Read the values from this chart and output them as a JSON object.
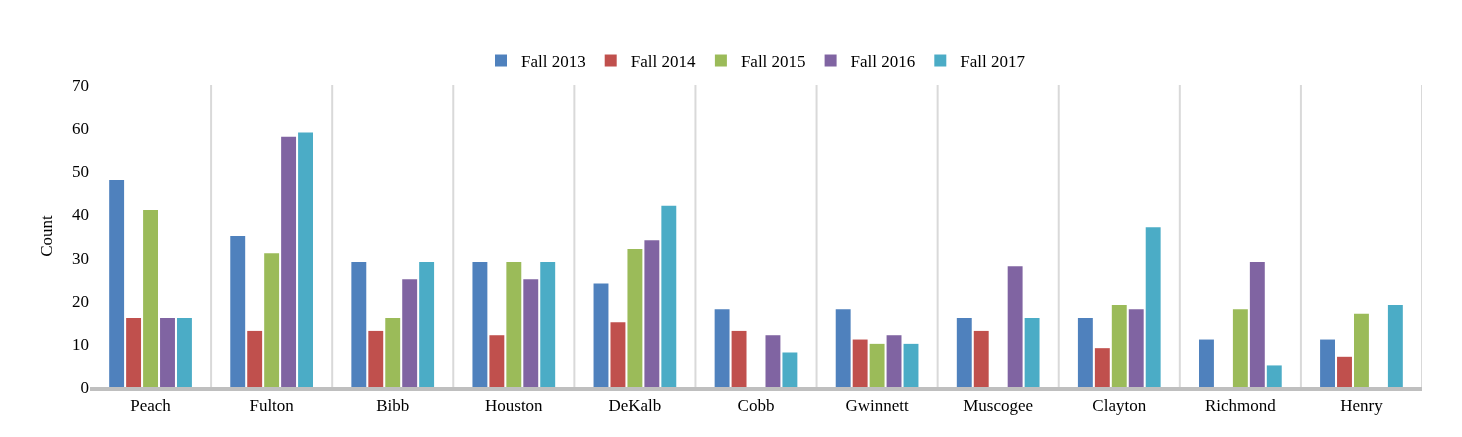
{
  "chart_data": {
    "type": "bar",
    "ylabel": "Count",
    "categories": [
      "Peach",
      "Fulton",
      "Bibb",
      "Houston",
      "DeKalb",
      "Cobb",
      "Gwinnett",
      "Muscogee",
      "Clayton",
      "Richmond",
      "Henry"
    ],
    "series": [
      {
        "name": "Fall 2013",
        "color": "#4f81bd",
        "values": [
          48,
          35,
          29,
          29,
          24,
          18,
          18,
          16,
          16,
          11,
          11
        ]
      },
      {
        "name": "Fall 2014",
        "color": "#c0504d",
        "values": [
          16,
          13,
          13,
          12,
          15,
          13,
          11,
          13,
          9,
          null,
          7
        ]
      },
      {
        "name": "Fall 2015",
        "color": "#9bbb59",
        "values": [
          41,
          31,
          16,
          29,
          32,
          null,
          10,
          null,
          19,
          18,
          17
        ]
      },
      {
        "name": "Fall 2016",
        "color": "#8064a2",
        "values": [
          16,
          58,
          25,
          25,
          34,
          12,
          12,
          28,
          18,
          29,
          null
        ]
      },
      {
        "name": "Fall 2017",
        "color": "#4bacc6",
        "values": [
          16,
          59,
          29,
          29,
          42,
          8,
          10,
          16,
          37,
          5,
          19
        ]
      }
    ],
    "ylim": [
      0,
      70
    ],
    "yticks": [
      0,
      10,
      20,
      30,
      40,
      50,
      60,
      70
    ],
    "grid": "x",
    "legend": "top"
  }
}
